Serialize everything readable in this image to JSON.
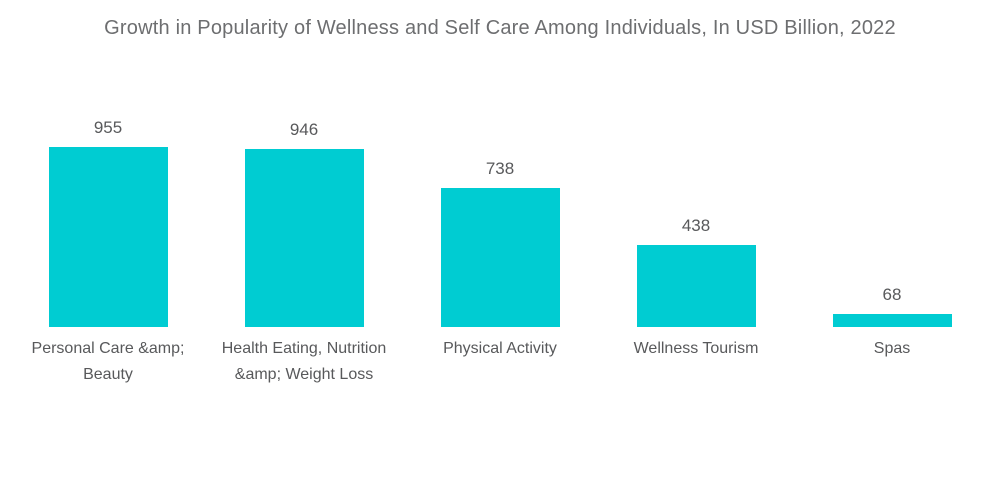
{
  "chart_data": {
    "type": "bar",
    "title": "Growth in Popularity of Wellness and Self Care Among Individuals, In USD Billion, 2022",
    "categories": [
      "Personal Care &amp; Beauty",
      "Health Eating, Nutrition &amp; Weight Loss",
      "Physical Activity",
      "Wellness Tourism",
      "Spas"
    ],
    "values": [
      955,
      946,
      738,
      438,
      68
    ],
    "xlabel": "",
    "ylabel": "",
    "ylim": [
      0,
      1000
    ],
    "grid": false,
    "axes_visible": false,
    "data_labels": "above bars",
    "legend": "none",
    "bar_color": "#00ccd2",
    "label_color": "#58595b",
    "title_color": "#6d6e70"
  }
}
